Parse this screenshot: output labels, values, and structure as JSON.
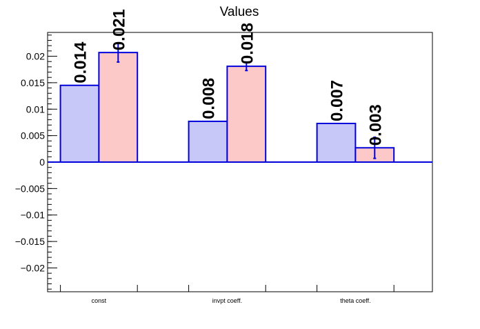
{
  "chart_data": {
    "type": "bar",
    "title": "Values",
    "categories": [
      "const",
      "invpt coeff.",
      "theta coeff."
    ],
    "series": [
      {
        "values": [
          0.0145,
          0.0077,
          0.0073
        ],
        "color": "#c8c8f8",
        "edge_color": "#0000dd"
      },
      {
        "values": [
          0.0207,
          0.0181,
          0.0027
        ],
        "color": "#fcc8c8",
        "edge_color": "#0000dd",
        "errors": [
          0.0018,
          0.0008,
          0.002
        ]
      }
    ],
    "value_labels": [
      [
        "0.014",
        "0.008",
        "0.007"
      ],
      [
        "0.021",
        "0.018",
        "0.003"
      ]
    ],
    "ylim": [
      -0.0245,
      0.0245
    ],
    "y_ticks": [
      -0.02,
      -0.015,
      -0.01,
      -0.005,
      0,
      0.005,
      0.01,
      0.015,
      0.02
    ],
    "y_tick_labels": [
      "−0.02",
      "−0.015",
      "−0.01",
      "−0.005",
      "0",
      "0.005",
      "0.01",
      "0.015",
      "0.02"
    ],
    "grid": false,
    "legend": "none",
    "xlabel": "",
    "ylabel": ""
  }
}
